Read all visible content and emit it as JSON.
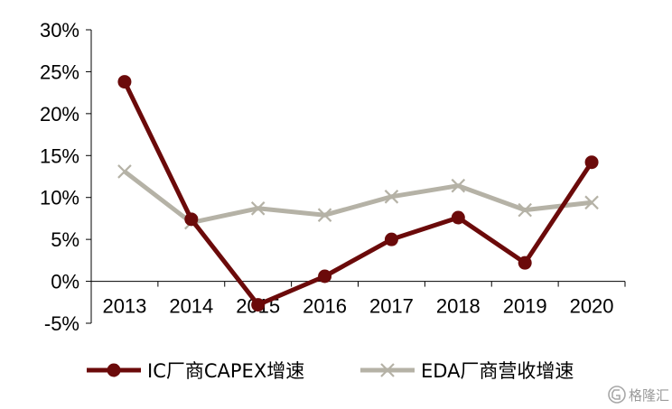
{
  "chart_data": {
    "type": "line",
    "categories": [
      "2013",
      "2014",
      "2015",
      "2016",
      "2017",
      "2018",
      "2019",
      "2020"
    ],
    "series": [
      {
        "name": "IC厂商CAPEX增速",
        "values": [
          23.8,
          7.4,
          -2.8,
          0.6,
          5.0,
          7.6,
          2.2,
          14.2
        ],
        "color": "#6b0a0a",
        "marker": "circle"
      },
      {
        "name": "EDA厂商营收增速",
        "values": [
          13.1,
          7.0,
          8.7,
          7.9,
          10.1,
          11.4,
          8.5,
          9.4
        ],
        "color": "#b5b2a6",
        "marker": "x"
      }
    ],
    "ylim": [
      -5,
      30
    ],
    "yticks": [
      -5,
      0,
      5,
      10,
      15,
      20,
      25,
      30
    ],
    "ytick_labels": [
      "-5%",
      "0%",
      "5%",
      "10%",
      "15%",
      "20%",
      "25%",
      "30%"
    ],
    "legend_position": "bottom",
    "grid": false
  },
  "watermark": {
    "icon": "gelonghui-logo-icon",
    "text": "格隆汇"
  }
}
